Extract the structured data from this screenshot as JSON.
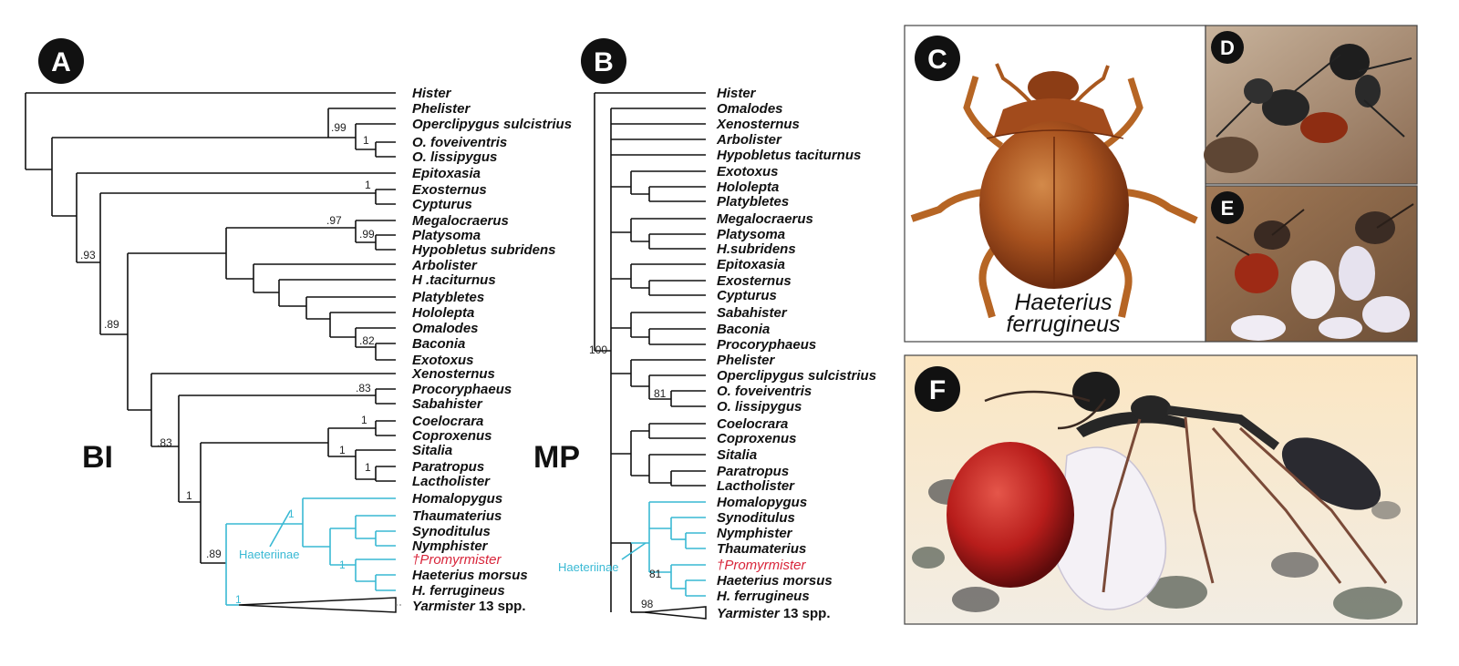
{
  "panels": {
    "a": "A",
    "b": "B",
    "c": "C",
    "d": "D",
    "e": "E",
    "f": "F"
  },
  "methods": {
    "bi": "BI",
    "mp": "MP"
  },
  "clade": "Haeteriinae",
  "caption": {
    "line1": "Haeterius",
    "line2": "ferrugineus"
  },
  "tree_bi": {
    "taxa": [
      "Hister",
      "Phelister",
      "Operclipygus sulcistrius",
      "O. foveiventris",
      "O. lissipygus",
      "Epitoxasia",
      "Exosternus",
      "Cypturus",
      "Megalocraerus",
      "Platysoma",
      "Hypobletus subridens",
      "Arbolister",
      "H .taciturnus",
      "Platybletes",
      "Hololepta",
      "Omalodes",
      "Baconia",
      "Exotoxus",
      "Xenosternus",
      "Procoryphaeus",
      "Sabahister",
      "Coelocrara",
      "Coproxenus",
      "Sitalia",
      "Paratropus",
      "Lactholister",
      "Homalopygus",
      "Thaumaterius",
      "Synoditulus",
      "Nymphister",
      "†Promyrmister",
      "Haeterius morsus",
      "H. ferrugineus"
    ],
    "yarmister": {
      "genus": "Yarmister",
      "count": "13 spp."
    },
    "supports": {
      "s99": ".99",
      "s1a": "1",
      "s93": ".93",
      "s1b": "1",
      "s89a": ".89",
      "s97": ".97",
      "s99b": ".99",
      "s82": ".82",
      "s83a": ".83",
      "s83b": ".83",
      "s1c": "1",
      "s1d": "1",
      "s1e": "1",
      "s1f": "1",
      "s89b": ".89",
      "s1g": "1",
      "s1h": "1"
    }
  },
  "tree_mp": {
    "taxa": [
      "Hister",
      "Omalodes",
      "Xenosternus",
      "Arbolister",
      "Hypobletus taciturnus",
      "Exotoxus",
      "Hololepta",
      "Platybletes",
      "Megalocraerus",
      "Platysoma",
      "H.subridens",
      "Epitoxasia",
      "Exosternus",
      "Cypturus",
      "Sabahister",
      "Baconia",
      "Procoryphaeus",
      "Phelister",
      "Operclipygus sulcistrius",
      "O. foveiventris",
      "O. lissipygus",
      "Coelocrara",
      "Coproxenus",
      "Sitalia",
      "Paratropus",
      "Lactholister",
      "Homalopygus",
      "Synoditulus",
      "Nymphister",
      "Thaumaterius",
      "†Promyrmister",
      "Haeterius morsus",
      "H. ferrugineus"
    ],
    "yarmister": {
      "genus": "Yarmister",
      "count": "13 spp."
    },
    "supports": {
      "s100": "100",
      "s81a": "81",
      "s81b": "81",
      "s98": "98"
    }
  }
}
